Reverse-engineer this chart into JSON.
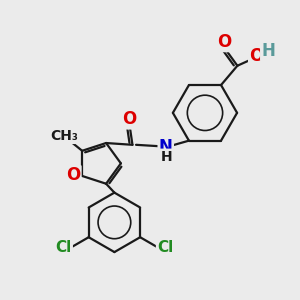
{
  "bg_color": "#ebebeb",
  "bond_color": "#1a1a1a",
  "bond_width": 1.6,
  "atom_colors": {
    "O": "#dd0000",
    "N": "#0000cc",
    "Cl": "#228B22",
    "C": "#1a1a1a",
    "H": "#5a9a9a"
  },
  "font_size": 11,
  "figsize": [
    3.0,
    3.0
  ],
  "dpi": 100
}
